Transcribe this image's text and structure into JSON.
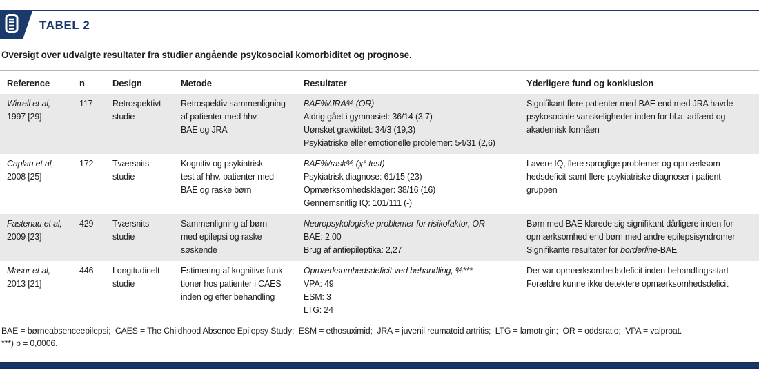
{
  "colors": {
    "navy": "#1a3a6c",
    "row_stripe": "#e9e9e9",
    "text": "#1d1d1b"
  },
  "header": {
    "badge_label": "TABEL 2",
    "caption": "Oversigt over udvalgte resultater fra studier angående psykosocial komorbiditet og prognose."
  },
  "table": {
    "columns": [
      "Reference",
      "n",
      "Design",
      "Metode",
      "Resultater",
      "Yderligere fund og konklusion"
    ],
    "column_keys": [
      "reference",
      "n",
      "design",
      "metode",
      "resultater",
      "konklusion"
    ],
    "rows": [
      {
        "cells": [
          [
            [
              {
                "t": "Wirrell et al,",
                "i": true
              }
            ],
            [
              {
                "t": "1997 [29]"
              }
            ]
          ],
          [
            [
              {
                "t": "117"
              }
            ]
          ],
          [
            [
              {
                "t": "Retrospektivt"
              }
            ],
            [
              {
                "t": "studie"
              }
            ]
          ],
          [
            [
              {
                "t": "Retrospektiv sammenligning"
              }
            ],
            [
              {
                "t": "af patienter med hhv."
              }
            ],
            [
              {
                "t": "BAE og JRA"
              }
            ]
          ],
          [
            [
              {
                "t": "BAE%/JRA% (OR)",
                "i": true
              }
            ],
            [
              {
                "t": "Aldrig gået i gymnasiet: 36/14 (3,7)"
              }
            ],
            [
              {
                "t": "Uønsket graviditet: 34/3 (19,3)"
              }
            ],
            [
              {
                "t": "Psykiatriske eller emotionelle problemer: 54/31 (2,6)"
              }
            ]
          ],
          [
            [
              {
                "t": "Signifikant flere patienter med BAE end med JRA havde"
              }
            ],
            [
              {
                "t": "psykosociale vanskeligheder inden for bl.a. adfærd og"
              }
            ],
            [
              {
                "t": "akademisk formåen"
              }
            ]
          ]
        ]
      },
      {
        "cells": [
          [
            [
              {
                "t": "Caplan et al,",
                "i": true
              }
            ],
            [
              {
                "t": "2008 [25]"
              }
            ]
          ],
          [
            [
              {
                "t": "172"
              }
            ]
          ],
          [
            [
              {
                "t": "Tværsnits-"
              }
            ],
            [
              {
                "t": "studie"
              }
            ]
          ],
          [
            [
              {
                "t": "Kognitiv og psykiatrisk"
              }
            ],
            [
              {
                "t": "test af hhv. patienter med"
              }
            ],
            [
              {
                "t": "BAE og raske børn"
              }
            ]
          ],
          [
            [
              {
                "t": "BAE%/rask% (χ²-test)",
                "i": true
              }
            ],
            [
              {
                "t": "Psykiatrisk diagnose: 61/15 (23)"
              }
            ],
            [
              {
                "t": "Opmærksomhedsklager: 38/16 (16)"
              }
            ],
            [
              {
                "t": "Gennemsnitlig IQ: 101/111 (-)"
              }
            ]
          ],
          [
            [
              {
                "t": "Lavere IQ, flere sproglige problemer og opmærksom-"
              }
            ],
            [
              {
                "t": "hedsdeficit samt flere psykiatriske diagnoser i patient-"
              }
            ],
            [
              {
                "t": "gruppen"
              }
            ]
          ]
        ]
      },
      {
        "cells": [
          [
            [
              {
                "t": "Fastenau et al,",
                "i": true
              }
            ],
            [
              {
                "t": "2009 [23]"
              }
            ]
          ],
          [
            [
              {
                "t": "429"
              }
            ]
          ],
          [
            [
              {
                "t": "Tværsnits-"
              }
            ],
            [
              {
                "t": "studie"
              }
            ]
          ],
          [
            [
              {
                "t": "Sammenligning af børn"
              }
            ],
            [
              {
                "t": "med epilepsi og raske"
              }
            ],
            [
              {
                "t": "søskende"
              }
            ]
          ],
          [
            [
              {
                "t": "Neuropsykologiske problemer for risikofaktor, OR",
                "i": true
              }
            ],
            [
              {
                "t": "BAE: 2,00"
              }
            ],
            [
              {
                "t": "Brug af antiepileptika: 2,27"
              }
            ]
          ],
          [
            [
              {
                "t": "Børn med BAE klarede sig signifikant dårligere inden for"
              }
            ],
            [
              {
                "t": "opmærksomhed end børn med andre epilepsisyndromer"
              }
            ],
            [
              {
                "t": "Signifikante resultater for "
              },
              {
                "t": "borderline",
                "i": true
              },
              {
                "t": "-BAE"
              }
            ]
          ]
        ]
      },
      {
        "cells": [
          [
            [
              {
                "t": "Masur et al,",
                "i": true
              }
            ],
            [
              {
                "t": "2013 [21]"
              }
            ]
          ],
          [
            [
              {
                "t": "446"
              }
            ]
          ],
          [
            [
              {
                "t": "Longitudinelt"
              }
            ],
            [
              {
                "t": "studie"
              }
            ]
          ],
          [
            [
              {
                "t": "Estimering af kognitive funk-"
              }
            ],
            [
              {
                "t": "tioner hos patienter i CAES"
              }
            ],
            [
              {
                "t": "inden og efter behandling"
              }
            ]
          ],
          [
            [
              {
                "t": "Opmærksomhedsdeficit ved behandling, %***",
                "i": true
              }
            ],
            [
              {
                "t": "VPA: 49"
              }
            ],
            [
              {
                "t": "ESM: 3"
              }
            ],
            [
              {
                "t": "LTG: 24"
              }
            ]
          ],
          [
            [
              {
                "t": "Der var opmærksomhedsdeficit inden behandlingsstart"
              }
            ],
            [
              {
                "t": "Forældre kunne ikke detektere opmærksomhedsdeficit"
              }
            ]
          ]
        ]
      }
    ]
  },
  "footnotes": {
    "abbreviations": "BAE = børneabsenceepilepsi;  CAES = The Childhood Absence Epilepsy Study;  ESM = ethosuximid;  JRA = juvenil reumatoid artritis;  LTG = lamotrigin;  OR = oddsratio;  VPA = valproat.",
    "significance": "***) p = 0,0006."
  }
}
